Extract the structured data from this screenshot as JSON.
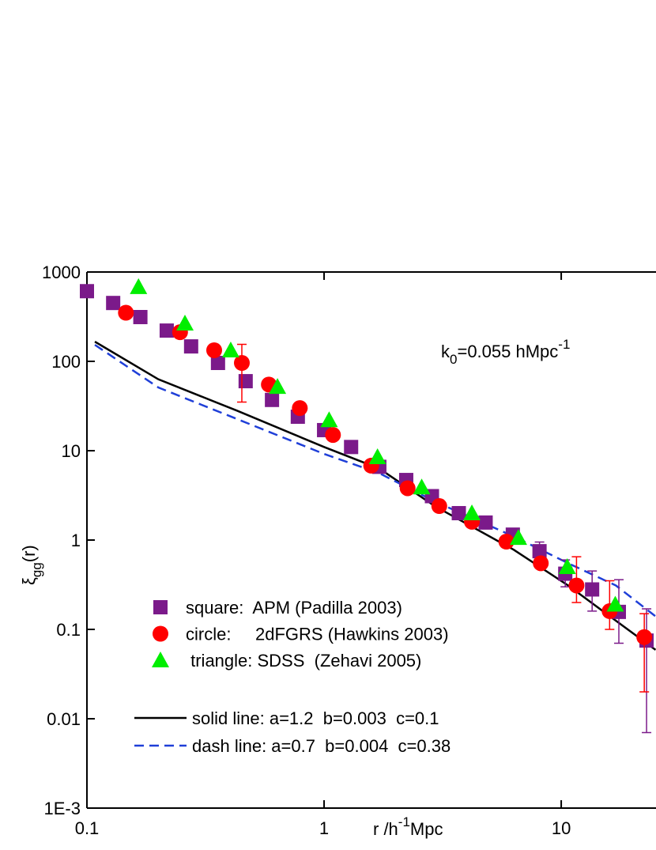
{
  "chart_data": {
    "type": "scatter",
    "log_x": true,
    "log_y": true,
    "xlim": [
      0.1,
      25.1
    ],
    "ylim": [
      0.001,
      1000
    ],
    "xticks": [
      0.1,
      1,
      10
    ],
    "yticks": [
      {
        "value": 0.001,
        "label": "1E-3"
      },
      0.01,
      0.1,
      1,
      10,
      100,
      1000
    ],
    "x_label": {
      "text": "r /h",
      "sup": "-1",
      "tail": "Mpc"
    },
    "y_label": {
      "text": "ξ",
      "sub": "gg",
      "tail": "(r)"
    },
    "annotation": {
      "text": "k",
      "sub": "0",
      "mid": "=0.055 hMpc",
      "sup": "-1"
    },
    "series": [
      {
        "name": "square:  APM (Padilla 2003)",
        "color": "#7b1a8a",
        "marker": "square",
        "x": [
          0.1,
          0.129,
          0.168,
          0.217,
          0.275,
          0.357,
          0.467,
          0.603,
          0.775,
          1.0,
          1.3,
          1.71,
          2.22,
          2.85,
          3.7,
          4.8,
          6.25,
          8.1,
          10.4,
          13.5,
          17.5,
          22.9
        ],
        "values": [
          610,
          450,
          313,
          221,
          147,
          96,
          60,
          37,
          24,
          17,
          11,
          6.6,
          4.7,
          3.1,
          2.0,
          1.57,
          1.15,
          0.75,
          0.42,
          0.28,
          0.157,
          0.075
        ],
        "y_low": [
          null,
          null,
          null,
          null,
          null,
          null,
          null,
          null,
          null,
          null,
          null,
          null,
          null,
          null,
          null,
          null,
          0.9,
          0.6,
          0.3,
          0.16,
          0.07,
          0.007
        ],
        "y_high": [
          null,
          null,
          null,
          null,
          null,
          null,
          null,
          null,
          null,
          null,
          null,
          null,
          null,
          null,
          null,
          null,
          1.3,
          0.95,
          0.6,
          0.45,
          0.36,
          0.17
        ]
      },
      {
        "name": "circle:     2dFGRS (Hawkins 2003)",
        "color": "#ff0000",
        "marker": "circle",
        "x": [
          0.146,
          0.247,
          0.344,
          0.45,
          0.585,
          0.79,
          1.09,
          1.58,
          2.25,
          3.06,
          4.2,
          5.87,
          8.2,
          11.6,
          16.0,
          22.4
        ],
        "values": [
          350,
          212,
          133,
          96,
          55,
          30,
          15,
          6.8,
          3.8,
          2.4,
          1.6,
          0.96,
          0.55,
          0.31,
          0.16,
          0.082
        ],
        "y_low": [
          null,
          null,
          null,
          35,
          null,
          null,
          null,
          null,
          null,
          null,
          null,
          null,
          null,
          0.2,
          0.1,
          0.02
        ],
        "y_high": [
          null,
          null,
          null,
          155,
          null,
          null,
          null,
          null,
          null,
          null,
          null,
          null,
          null,
          0.65,
          0.35,
          0.15
        ]
      },
      {
        "name": " triangle: SDSS  (Zehavi 2005)",
        "color": "#00ee00",
        "marker": "triangle",
        "x": [
          0.165,
          0.259,
          0.404,
          0.636,
          1.05,
          1.68,
          2.58,
          4.2,
          6.6,
          10.6,
          16.9
        ],
        "values": [
          680,
          266,
          133,
          52,
          22,
          8.5,
          3.9,
          2.0,
          1.06,
          0.5,
          0.19
        ]
      },
      {
        "name": "solid line: a=1.2  b=0.003  c=0.1",
        "color": "#000000",
        "line": "solid",
        "x": [
          0.108,
          0.2,
          0.43,
          1,
          1.71,
          2.93,
          6.3,
          10.7,
          17,
          25
        ],
        "values": [
          166,
          63,
          28,
          11,
          6.3,
          2.4,
          0.78,
          0.31,
          0.125,
          0.059
        ]
      },
      {
        "name": "dash line: a=0.7  b=0.004  c=0.38",
        "color": "#1f3fd8",
        "line": "dash",
        "x": [
          0.108,
          0.2,
          0.43,
          1,
          1.71,
          2.93,
          6.3,
          10.7,
          17,
          25
        ],
        "values": [
          153,
          51,
          22.6,
          9.2,
          5.6,
          2.7,
          1.1,
          0.55,
          0.31,
          0.14
        ]
      }
    ]
  }
}
